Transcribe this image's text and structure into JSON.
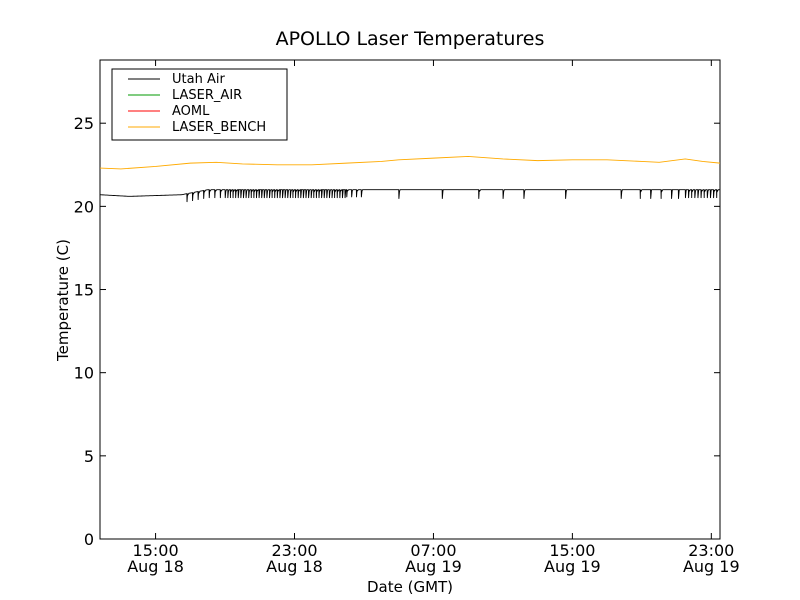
{
  "chart_data": {
    "type": "line",
    "title": "APOLLO Laser Temperatures",
    "xlabel": "Date (GMT)",
    "ylabel": "Temperature (C)",
    "ylim": [
      0,
      28.8
    ],
    "xlim_hours": [
      11.8,
      47.5
    ],
    "y_ticks": [
      {
        "value": 0,
        "label": "0"
      },
      {
        "value": 5,
        "label": "5"
      },
      {
        "value": 10,
        "label": "10"
      },
      {
        "value": 15,
        "label": "15"
      },
      {
        "value": 20,
        "label": "20"
      },
      {
        "value": 25,
        "label": "25"
      }
    ],
    "x_ticks": [
      {
        "hour": 15,
        "line1": "15:00",
        "line2": "Aug 18"
      },
      {
        "hour": 23,
        "line1": "23:00",
        "line2": "Aug 18"
      },
      {
        "hour": 31,
        "line1": "07:00",
        "line2": "Aug 19"
      },
      {
        "hour": 39,
        "line1": "15:00",
        "line2": "Aug 19"
      },
      {
        "hour": 47,
        "line1": "23:00",
        "line2": "Aug 19"
      }
    ],
    "legend_position": "top-left",
    "series": [
      {
        "name": "Utah Air",
        "color": "#000000",
        "baseline": [
          [
            11.8,
            20.7
          ],
          [
            13.5,
            20.6
          ],
          [
            16.5,
            20.7
          ],
          [
            18,
            21.0
          ],
          [
            47.5,
            21.0
          ]
        ],
        "dips": [
          {
            "from": 16.8,
            "to": 19.0,
            "period": 0.32,
            "depth": 0.5
          },
          {
            "from": 19.0,
            "to": 26.0,
            "period": 0.15,
            "depth": 0.5
          },
          {
            "from": 26.0,
            "to": 27.0,
            "period": 0.28,
            "depth": 0.45
          },
          {
            "hours": [
              29.0,
              31.5,
              33.6,
              35.0,
              36.2,
              38.6,
              41.8,
              42.9,
              43.5,
              44.1,
              44.7,
              45.1
            ]
          },
          {
            "from": 45.5,
            "to": 47.5,
            "period": 0.18,
            "depth": 0.5
          }
        ]
      },
      {
        "name": "LASER_AIR",
        "color": "#009900",
        "points": []
      },
      {
        "name": "AOML",
        "color": "#ff0000",
        "points": []
      },
      {
        "name": "LASER_BENCH",
        "color": "#ffaa00",
        "points": [
          [
            11.8,
            22.3
          ],
          [
            13,
            22.25
          ],
          [
            15,
            22.4
          ],
          [
            17,
            22.6
          ],
          [
            18.5,
            22.65
          ],
          [
            20,
            22.55
          ],
          [
            22,
            22.5
          ],
          [
            24,
            22.5
          ],
          [
            26,
            22.6
          ],
          [
            28,
            22.7
          ],
          [
            29,
            22.8
          ],
          [
            31,
            22.9
          ],
          [
            33,
            23.0
          ],
          [
            35,
            22.85
          ],
          [
            37,
            22.75
          ],
          [
            39,
            22.8
          ],
          [
            41,
            22.8
          ],
          [
            43,
            22.7
          ],
          [
            44,
            22.65
          ],
          [
            45.5,
            22.85
          ],
          [
            46.5,
            22.7
          ],
          [
            47.5,
            22.6
          ]
        ]
      }
    ]
  }
}
